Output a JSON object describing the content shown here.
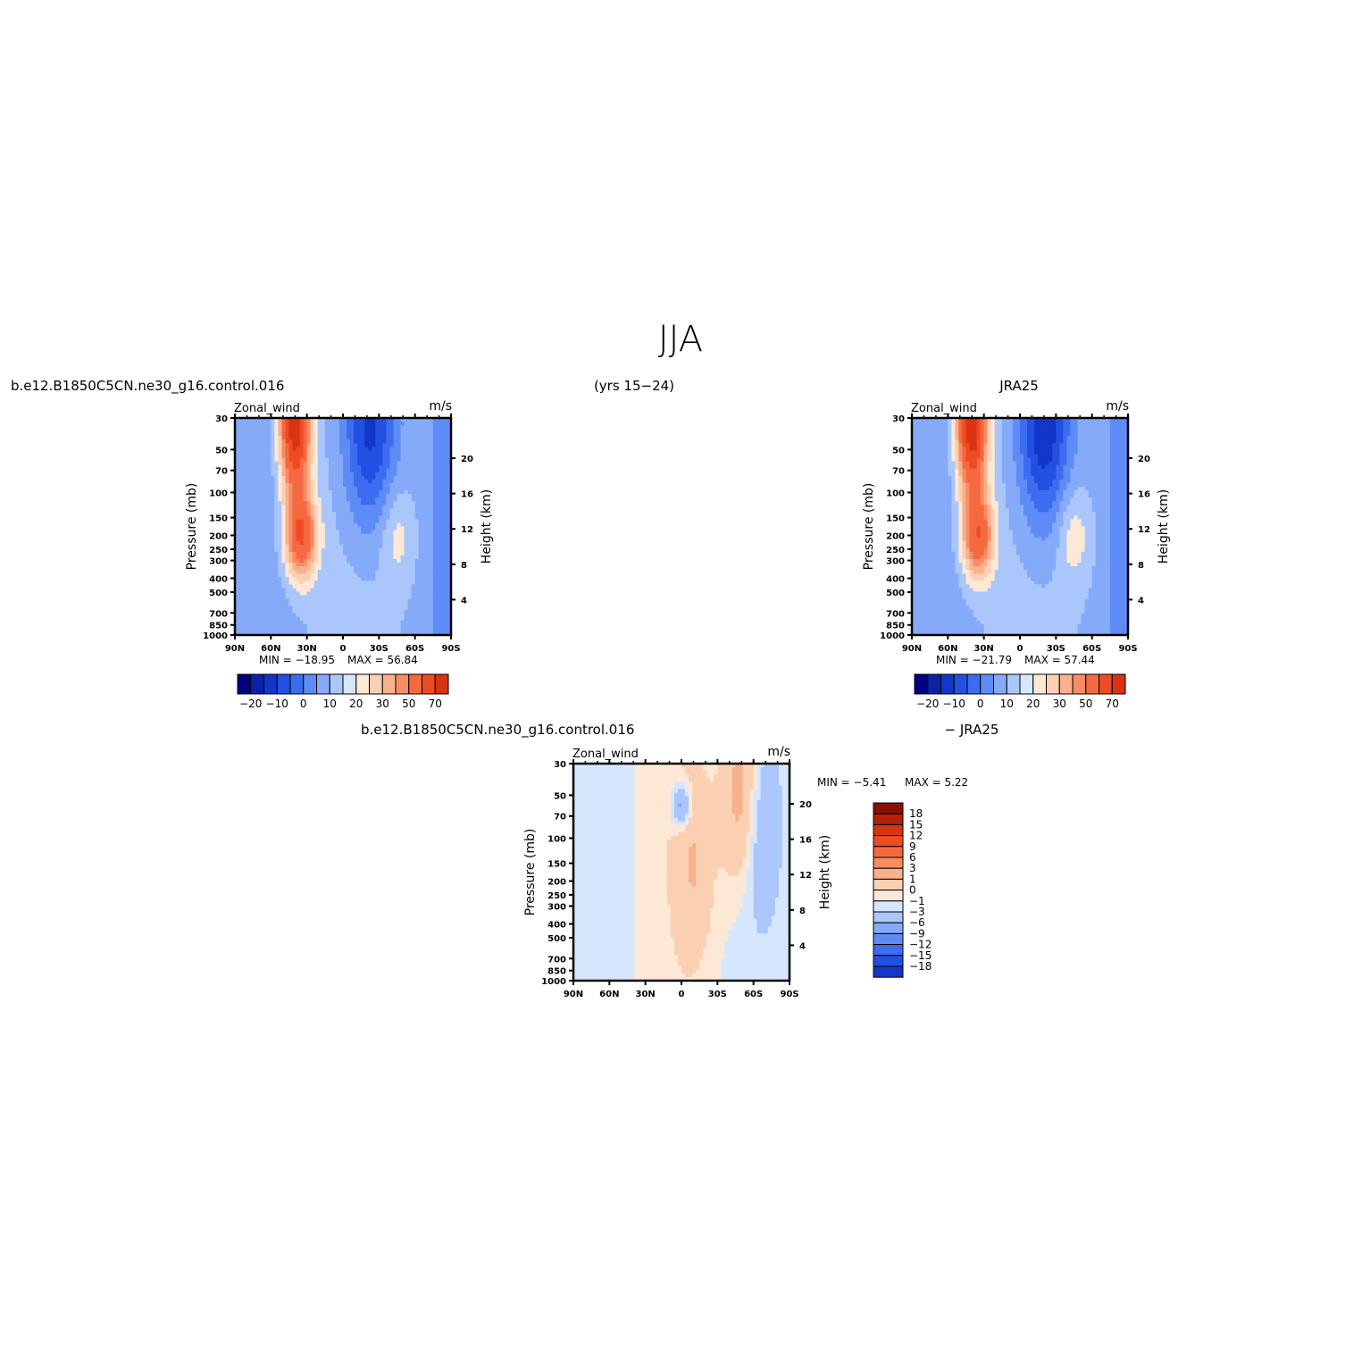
{
  "figure": {
    "title": "JJA",
    "case_name": "b.e12.B1850C5CN.ne30_g16.control.016",
    "years": "(yrs 15−24)",
    "obs_name": "JRA25",
    "diff_left": "b.e12.B1850C5CN.ne30_g16.control.016",
    "diff_right": "− JRA25"
  },
  "colors": {
    "blues": [
      "#000080",
      "#0a22a6",
      "#1236c9",
      "#2250e2",
      "#3c6cf0",
      "#5e8cf7",
      "#85aaf9",
      "#aac6fb",
      "#d6e7fd"
    ],
    "reds": [
      "#fde8d6",
      "#fbd0b2",
      "#f9b08c",
      "#f78c65",
      "#f56940",
      "#ef4b22",
      "#d93412",
      "#b52108",
      "#8a0f04"
    ]
  },
  "chart_data": [
    {
      "type": "heatmap",
      "id": "model",
      "left_title": "Zonal_wind",
      "right_title": "m/s",
      "ylabel": "Pressure  (mb)",
      "ylabel_right": "Height  (km)",
      "x_ticks": [
        "90N",
        "60N",
        "30N",
        "0",
        "30S",
        "60S",
        "90S"
      ],
      "x_range": [
        -90,
        90
      ],
      "y_ticks": [
        30,
        50,
        70,
        100,
        150,
        200,
        250,
        300,
        400,
        500,
        700,
        850,
        1000
      ],
      "y_range_mb": [
        30,
        1000
      ],
      "height_ticks_km": [
        20,
        16,
        12,
        8,
        4
      ],
      "min_label": "MIN = −18.95",
      "max_label": "MAX =   56.84",
      "min": -18.95,
      "max": 56.84,
      "levels": [
        -25,
        -20,
        -15,
        -10,
        -5,
        0,
        5,
        10,
        15,
        20,
        25,
        30,
        40,
        50,
        60,
        70
      ],
      "colorbar_labels": [
        "−20",
        "−10",
        "0",
        "10",
        "20",
        "30",
        "50",
        "70"
      ],
      "features": [
        {
          "kind": "easterly-core",
          "lat": -22,
          "p_mb": 35,
          "value": -18.95
        },
        {
          "kind": "westerly-jet",
          "lat": 40,
          "p_mb": 35,
          "value": 56.84
        },
        {
          "kind": "subtropical-jet",
          "lat": 35,
          "p_mb": 200,
          "value": 40
        },
        {
          "kind": "weak-westerlies",
          "lat": -45,
          "p_mb": 200,
          "value": 12
        }
      ]
    },
    {
      "type": "heatmap",
      "id": "obs",
      "left_title": "Zonal_wind",
      "right_title": "m/s",
      "ylabel": "Pressure  (mb)",
      "ylabel_right": "Height  (km)",
      "x_ticks": [
        "90N",
        "60N",
        "30N",
        "0",
        "30S",
        "60S",
        "90S"
      ],
      "x_range": [
        -90,
        90
      ],
      "y_ticks": [
        30,
        50,
        70,
        100,
        150,
        200,
        250,
        300,
        400,
        500,
        700,
        850,
        1000
      ],
      "y_range_mb": [
        30,
        1000
      ],
      "height_ticks_km": [
        20,
        16,
        12,
        8,
        4
      ],
      "min_label": "MIN = −21.79",
      "max_label": "MAX =   57.44",
      "min": -21.79,
      "max": 57.44,
      "levels": [
        -25,
        -20,
        -15,
        -10,
        -5,
        0,
        5,
        10,
        15,
        20,
        25,
        30,
        40,
        50,
        60,
        70
      ],
      "colorbar_labels": [
        "−20",
        "−10",
        "0",
        "10",
        "20",
        "30",
        "50",
        "70"
      ],
      "features": [
        {
          "kind": "easterly-core",
          "lat": -20,
          "p_mb": 35,
          "value": -21.79
        },
        {
          "kind": "westerly-jet",
          "lat": 40,
          "p_mb": 35,
          "value": 57.44
        },
        {
          "kind": "subtropical-jet",
          "lat": 35,
          "p_mb": 200,
          "value": 38
        },
        {
          "kind": "weak-westerlies",
          "lat": -45,
          "p_mb": 200,
          "value": 13
        }
      ]
    },
    {
      "type": "heatmap",
      "id": "diff",
      "left_title": "Zonal_wind",
      "right_title": "m/s",
      "ylabel": "Pressure  (mb)",
      "ylabel_right": "Height  (km)",
      "x_ticks": [
        "90N",
        "60N",
        "30N",
        "0",
        "30S",
        "60S",
        "90S"
      ],
      "x_range": [
        -90,
        90
      ],
      "y_ticks": [
        30,
        50,
        70,
        100,
        150,
        200,
        250,
        300,
        400,
        500,
        700,
        850,
        1000
      ],
      "y_range_mb": [
        30,
        1000
      ],
      "height_ticks_km": [
        20,
        16,
        12,
        8,
        4
      ],
      "min_label": "MIN =   −5.41",
      "max_label": "MAX =     5.22",
      "min": -5.41,
      "max": 5.22,
      "levels": [
        -18,
        -15,
        -12,
        -9,
        -6,
        -3,
        -1,
        0,
        1,
        3,
        6,
        9,
        12,
        15,
        18
      ],
      "colorbar_labels": [
        "18",
        "15",
        "12",
        "9",
        "6",
        "3",
        "1",
        "0",
        "−1",
        "−3",
        "−6",
        "−9",
        "−12",
        "−15",
        "−18"
      ],
      "features": [
        {
          "kind": "negative-cell",
          "lat": 0,
          "p_mb": 60,
          "value": -5.41
        },
        {
          "kind": "positive-band",
          "lat": -10,
          "p_mb": 150,
          "value": 3
        },
        {
          "kind": "positive-band",
          "lat": -50,
          "p_mb": 50,
          "value": 5.22
        },
        {
          "kind": "negative-band",
          "lat": -65,
          "p_mb": 80,
          "value": -3
        }
      ]
    }
  ]
}
